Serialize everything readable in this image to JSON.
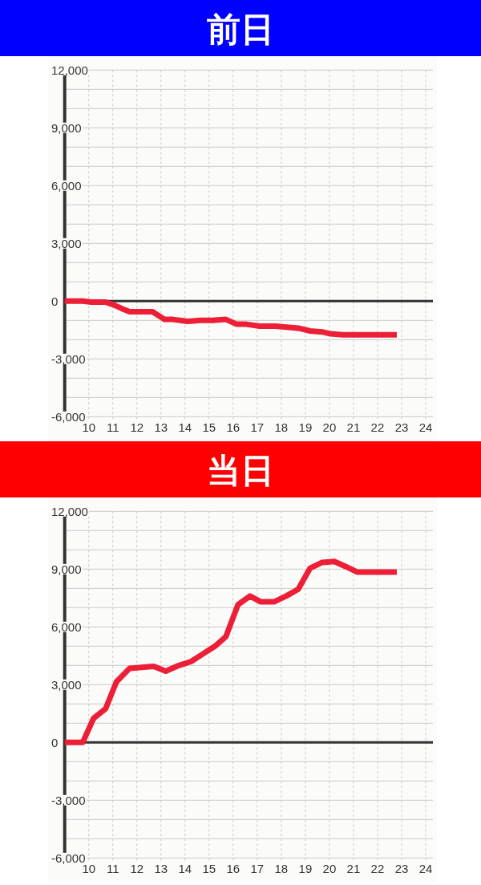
{
  "chart_data": [
    {
      "type": "line",
      "title": "前日",
      "xlim": [
        9,
        24.3
      ],
      "xticks": [
        10,
        11,
        12,
        13,
        14,
        15,
        16,
        17,
        18,
        19,
        20,
        21,
        22,
        23,
        24
      ],
      "ylim": [
        -6000,
        12000
      ],
      "yticks": [
        {
          "value": 12000,
          "label": "12,000"
        },
        {
          "value": 11000,
          "label": null
        },
        {
          "value": 10000,
          "label": null
        },
        {
          "value": 9000,
          "label": "9,000"
        },
        {
          "value": 8000,
          "label": null
        },
        {
          "value": 7000,
          "label": null
        },
        {
          "value": 6000,
          "label": "6,000"
        },
        {
          "value": 5000,
          "label": null
        },
        {
          "value": 4000,
          "label": null
        },
        {
          "value": 3000,
          "label": "3,000"
        },
        {
          "value": 2000,
          "label": null
        },
        {
          "value": 1000,
          "label": null
        },
        0,
        {
          "value": -1000,
          "label": null
        },
        {
          "value": -2000,
          "label": null
        },
        {
          "value": -3000,
          "label": "-3,000"
        },
        {
          "value": -4000,
          "label": null
        },
        {
          "value": -5000,
          "label": null
        },
        {
          "value": -6000,
          "label": "-6,000"
        }
      ],
      "grid": true,
      "line_style": "solid",
      "ref_lines": [
        {
          "axis": "y",
          "value": 0,
          "color": "#333333"
        }
      ],
      "series": [
        {
          "color": "#ec1f37",
          "x": [
            9,
            9.75,
            10.1,
            10.7,
            11.05,
            11.4,
            11.7,
            12.65,
            13.15,
            13.5,
            14.1,
            14.65,
            15.15,
            15.7,
            16.15,
            16.55,
            17.1,
            17.75,
            18.7,
            19.2,
            19.7,
            20.05,
            20.55,
            22.8
          ],
          "values": [
            0,
            0,
            -50,
            -50,
            -200,
            -400,
            -550,
            -550,
            -950,
            -950,
            -1050,
            -1000,
            -1000,
            -950,
            -1200,
            -1200,
            -1300,
            -1300,
            -1400,
            -1550,
            -1600,
            -1700,
            -1750,
            -1750
          ]
        }
      ]
    },
    {
      "type": "line",
      "title": "当日",
      "xlim": [
        9,
        24.3
      ],
      "xticks": [
        10,
        11,
        12,
        13,
        14,
        15,
        16,
        17,
        18,
        19,
        20,
        21,
        22,
        23,
        24
      ],
      "ylim": [
        -6000,
        12000
      ],
      "yticks": [
        {
          "value": 12000,
          "label": "12,000"
        },
        {
          "value": 11000,
          "label": null
        },
        {
          "value": 10000,
          "label": null
        },
        {
          "value": 9000,
          "label": "9,000"
        },
        {
          "value": 8000,
          "label": null
        },
        {
          "value": 7000,
          "label": null
        },
        {
          "value": 6000,
          "label": "6,000"
        },
        {
          "value": 5000,
          "label": null
        },
        {
          "value": 4000,
          "label": null
        },
        {
          "value": 3000,
          "label": "3,000"
        },
        {
          "value": 2000,
          "label": null
        },
        {
          "value": 1000,
          "label": null
        },
        0,
        {
          "value": -1000,
          "label": null
        },
        {
          "value": -2000,
          "label": null
        },
        {
          "value": -3000,
          "label": "-3,000"
        },
        {
          "value": -4000,
          "label": null
        },
        {
          "value": -5000,
          "label": null
        },
        {
          "value": -6000,
          "label": "-6,000"
        }
      ],
      "grid": true,
      "line_style": "solid",
      "ref_lines": [
        {
          "axis": "y",
          "value": 0,
          "color": "#333333"
        }
      ],
      "series": [
        {
          "color": "#ec1f37",
          "x": [
            9,
            9.75,
            10.2,
            10.7,
            11.15,
            11.7,
            12.7,
            13.2,
            13.75,
            14.25,
            14.75,
            15.25,
            15.7,
            16.2,
            16.7,
            17.15,
            17.7,
            18.2,
            18.7,
            19.2,
            19.7,
            20.2,
            20.65,
            21.15,
            22.8
          ],
          "values": [
            0,
            0,
            1250,
            1750,
            3150,
            3850,
            3950,
            3700,
            4000,
            4200,
            4600,
            5000,
            5500,
            7150,
            7600,
            7300,
            7300,
            7600,
            7950,
            9050,
            9350,
            9400,
            9150,
            8850,
            8850
          ]
        }
      ]
    }
  ]
}
